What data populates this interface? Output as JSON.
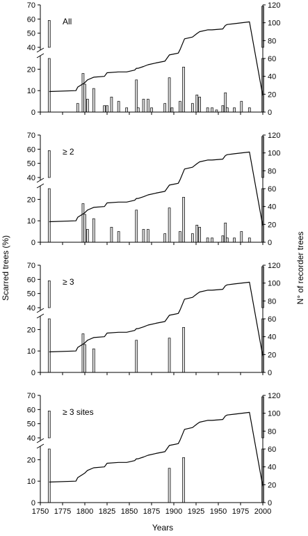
{
  "figure": {
    "xlabel": "Years",
    "ylabel_left": "Scarred trees (%)",
    "ylabel_right": "N° of recorder trees"
  },
  "chart_data": [
    {
      "type": "bar",
      "panel_label": "All",
      "xlim": [
        1750,
        2000
      ],
      "x_ticks": [
        1750,
        1775,
        1800,
        1825,
        1850,
        1875,
        1900,
        1925,
        1950,
        1975,
        2000
      ],
      "y_left_ticks_lower": [
        0,
        10,
        20
      ],
      "y_left_ticks_upper": [
        40,
        50,
        60,
        70
      ],
      "y_left_break": [
        25,
        40
      ],
      "y_right_ticks": [
        0,
        20,
        40,
        60,
        80,
        100,
        120
      ],
      "ylim_right": [
        0,
        120
      ],
      "grid": false,
      "bars": [
        {
          "x": 1760,
          "value": 59
        },
        {
          "x": 1792,
          "value": 4
        },
        {
          "x": 1798,
          "value": 18
        },
        {
          "x": 1800,
          "value": 13
        },
        {
          "x": 1803,
          "value": 6
        },
        {
          "x": 1810,
          "value": 11
        },
        {
          "x": 1822,
          "value": 3
        },
        {
          "x": 1825,
          "value": 3
        },
        {
          "x": 1830,
          "value": 7
        },
        {
          "x": 1838,
          "value": 5
        },
        {
          "x": 1847,
          "value": 2
        },
        {
          "x": 1858,
          "value": 15
        },
        {
          "x": 1860,
          "value": 2
        },
        {
          "x": 1866,
          "value": 6
        },
        {
          "x": 1871,
          "value": 6
        },
        {
          "x": 1875,
          "value": 2
        },
        {
          "x": 1890,
          "value": 4
        },
        {
          "x": 1895,
          "value": 16
        },
        {
          "x": 1898,
          "value": 2
        },
        {
          "x": 1907,
          "value": 5
        },
        {
          "x": 1911,
          "value": 21
        },
        {
          "x": 1921,
          "value": 4
        },
        {
          "x": 1926,
          "value": 8
        },
        {
          "x": 1929,
          "value": 7
        },
        {
          "x": 1938,
          "value": 2
        },
        {
          "x": 1943,
          "value": 2
        },
        {
          "x": 1948,
          "value": 1
        },
        {
          "x": 1955,
          "value": 3
        },
        {
          "x": 1958,
          "value": 9
        },
        {
          "x": 1960,
          "value": 2
        },
        {
          "x": 1968,
          "value": 2
        },
        {
          "x": 1976,
          "value": 5
        },
        {
          "x": 1985,
          "value": 2
        },
        {
          "x": 2000,
          "value": 69
        }
      ],
      "recorder_trees": {
        "x": [
          1760,
          1790,
          1792,
          1800,
          1803,
          1810,
          1822,
          1825,
          1838,
          1847,
          1856,
          1858,
          1860,
          1866,
          1871,
          1880,
          1890,
          1895,
          1905,
          1907,
          1912,
          1921,
          1926,
          1929,
          1938,
          1943,
          1955,
          1958,
          1960,
          1968,
          1985,
          2000
        ],
        "values": [
          23,
          24,
          28,
          33,
          36,
          39,
          40,
          44,
          45,
          45,
          47,
          49,
          49,
          51,
          53,
          55,
          57,
          64,
          66,
          70,
          82,
          84,
          88,
          90,
          92,
          92,
          93,
          97,
          98,
          99,
          101,
          18
        ]
      }
    },
    {
      "type": "bar",
      "panel_label": "≥ 2",
      "xlim": [
        1750,
        2000
      ],
      "x_ticks": [
        1750,
        1775,
        1800,
        1825,
        1850,
        1875,
        1900,
        1925,
        1950,
        1975,
        2000
      ],
      "y_left_ticks_lower": [
        0,
        10,
        20
      ],
      "y_left_ticks_upper": [
        40,
        50,
        60,
        70
      ],
      "y_left_break": [
        25,
        40
      ],
      "y_right_ticks": [
        0,
        20,
        40,
        60,
        80,
        100,
        120
      ],
      "ylim_right": [
        0,
        120
      ],
      "grid": false,
      "bars": [
        {
          "x": 1760,
          "value": 59
        },
        {
          "x": 1798,
          "value": 18
        },
        {
          "x": 1800,
          "value": 13
        },
        {
          "x": 1803,
          "value": 6
        },
        {
          "x": 1810,
          "value": 11
        },
        {
          "x": 1830,
          "value": 7
        },
        {
          "x": 1838,
          "value": 5
        },
        {
          "x": 1858,
          "value": 15
        },
        {
          "x": 1866,
          "value": 6
        },
        {
          "x": 1871,
          "value": 6
        },
        {
          "x": 1890,
          "value": 4
        },
        {
          "x": 1895,
          "value": 16
        },
        {
          "x": 1907,
          "value": 5
        },
        {
          "x": 1911,
          "value": 21
        },
        {
          "x": 1921,
          "value": 4
        },
        {
          "x": 1926,
          "value": 8
        },
        {
          "x": 1929,
          "value": 7
        },
        {
          "x": 1938,
          "value": 2
        },
        {
          "x": 1943,
          "value": 2
        },
        {
          "x": 1955,
          "value": 3
        },
        {
          "x": 1958,
          "value": 9
        },
        {
          "x": 1960,
          "value": 2
        },
        {
          "x": 1968,
          "value": 2
        },
        {
          "x": 1976,
          "value": 5
        },
        {
          "x": 1985,
          "value": 2
        },
        {
          "x": 2000,
          "value": 69
        }
      ],
      "recorder_trees": {
        "x": [
          1760,
          1790,
          1792,
          1800,
          1803,
          1810,
          1822,
          1825,
          1838,
          1847,
          1856,
          1858,
          1860,
          1866,
          1871,
          1880,
          1890,
          1895,
          1905,
          1907,
          1912,
          1921,
          1926,
          1929,
          1938,
          1943,
          1955,
          1958,
          1960,
          1968,
          1985,
          2000
        ],
        "values": [
          23,
          24,
          28,
          33,
          36,
          39,
          40,
          44,
          45,
          45,
          47,
          49,
          49,
          51,
          53,
          55,
          57,
          64,
          66,
          70,
          82,
          84,
          88,
          90,
          92,
          92,
          93,
          97,
          98,
          99,
          101,
          18
        ]
      }
    },
    {
      "type": "bar",
      "panel_label": "≥ 3",
      "xlim": [
        1750,
        2000
      ],
      "x_ticks": [
        1750,
        1775,
        1800,
        1825,
        1850,
        1875,
        1900,
        1925,
        1950,
        1975,
        2000
      ],
      "y_left_ticks_lower": [
        0,
        10,
        20
      ],
      "y_left_ticks_upper": [
        40,
        50,
        60,
        70
      ],
      "y_left_break": [
        25,
        40
      ],
      "y_right_ticks": [
        0,
        20,
        40,
        60,
        80,
        100,
        120
      ],
      "ylim_right": [
        0,
        120
      ],
      "grid": false,
      "bars": [
        {
          "x": 1760,
          "value": 59
        },
        {
          "x": 1798,
          "value": 18
        },
        {
          "x": 1800,
          "value": 13
        },
        {
          "x": 1810,
          "value": 11
        },
        {
          "x": 1858,
          "value": 15
        },
        {
          "x": 1895,
          "value": 16
        },
        {
          "x": 1911,
          "value": 21
        },
        {
          "x": 2000,
          "value": 69
        }
      ],
      "recorder_trees": {
        "x": [
          1760,
          1790,
          1792,
          1800,
          1803,
          1810,
          1822,
          1825,
          1838,
          1847,
          1856,
          1858,
          1860,
          1866,
          1871,
          1880,
          1890,
          1895,
          1905,
          1907,
          1912,
          1921,
          1926,
          1929,
          1938,
          1943,
          1955,
          1958,
          1960,
          1968,
          1985,
          2000
        ],
        "values": [
          23,
          24,
          28,
          33,
          36,
          39,
          40,
          44,
          45,
          45,
          47,
          49,
          49,
          51,
          53,
          55,
          57,
          64,
          66,
          70,
          82,
          84,
          88,
          90,
          92,
          92,
          93,
          97,
          98,
          99,
          101,
          18
        ]
      }
    },
    {
      "type": "bar",
      "panel_label": "≥ 3 sites",
      "xlim": [
        1750,
        2000
      ],
      "x_ticks": [
        1750,
        1775,
        1800,
        1825,
        1850,
        1875,
        1900,
        1925,
        1950,
        1975,
        2000
      ],
      "y_left_ticks_lower": [
        0,
        10,
        20
      ],
      "y_left_ticks_upper": [
        40,
        50,
        60,
        70
      ],
      "y_left_break": [
        25,
        40
      ],
      "y_right_ticks": [
        0,
        20,
        40,
        60,
        80,
        100,
        120
      ],
      "ylim_right": [
        0,
        120
      ],
      "grid": false,
      "bars": [
        {
          "x": 1760,
          "value": 59
        },
        {
          "x": 1895,
          "value": 16
        },
        {
          "x": 1911,
          "value": 21
        },
        {
          "x": 2000,
          "value": 69
        }
      ],
      "recorder_trees": {
        "x": [
          1760,
          1790,
          1792,
          1800,
          1803,
          1810,
          1822,
          1825,
          1838,
          1847,
          1856,
          1858,
          1860,
          1866,
          1871,
          1880,
          1890,
          1895,
          1905,
          1907,
          1912,
          1921,
          1926,
          1929,
          1938,
          1943,
          1955,
          1958,
          1960,
          1968,
          1985,
          2000
        ],
        "values": [
          23,
          24,
          28,
          33,
          36,
          39,
          40,
          44,
          45,
          45,
          47,
          49,
          49,
          51,
          53,
          55,
          57,
          64,
          66,
          70,
          82,
          84,
          88,
          90,
          92,
          92,
          93,
          97,
          98,
          99,
          101,
          18
        ]
      }
    }
  ]
}
